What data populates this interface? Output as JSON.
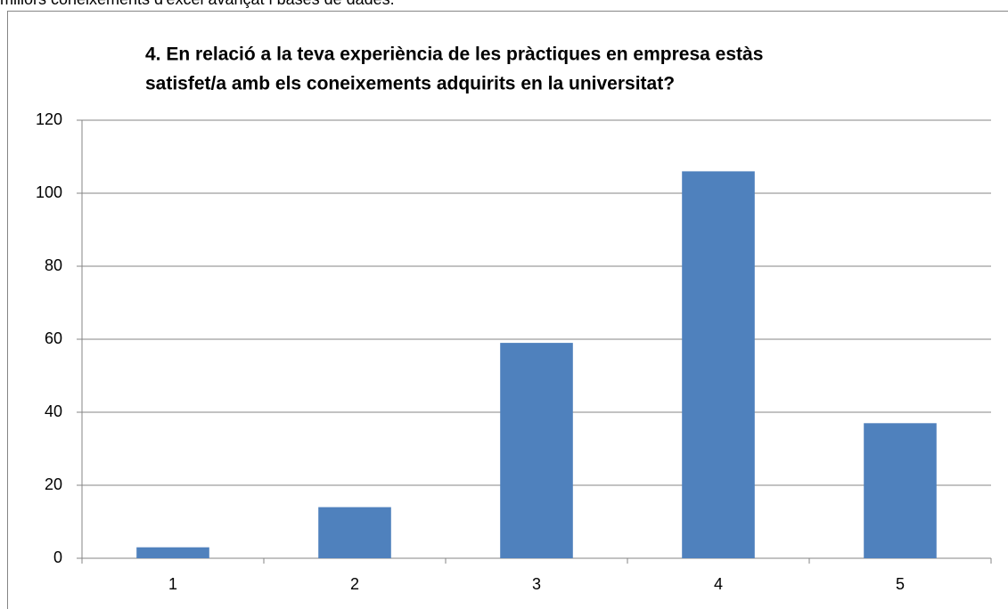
{
  "page_text": "millors coneixements  d'excel avançat i bases de dades.",
  "chart_data": {
    "type": "bar",
    "title": [
      "4. En relació a la teva experiència  de les pràctiques en empresa estàs",
      "satisfet/a amb els coneixements adquirits en la universitat?"
    ],
    "categories": [
      "1",
      "2",
      "3",
      "4",
      "5"
    ],
    "values": [
      3,
      14,
      59,
      106,
      37
    ],
    "color": "#4f81bd",
    "ylim": [
      0,
      120
    ],
    "yticks": [
      0,
      20,
      40,
      60,
      80,
      100,
      120
    ],
    "grid": true
  }
}
